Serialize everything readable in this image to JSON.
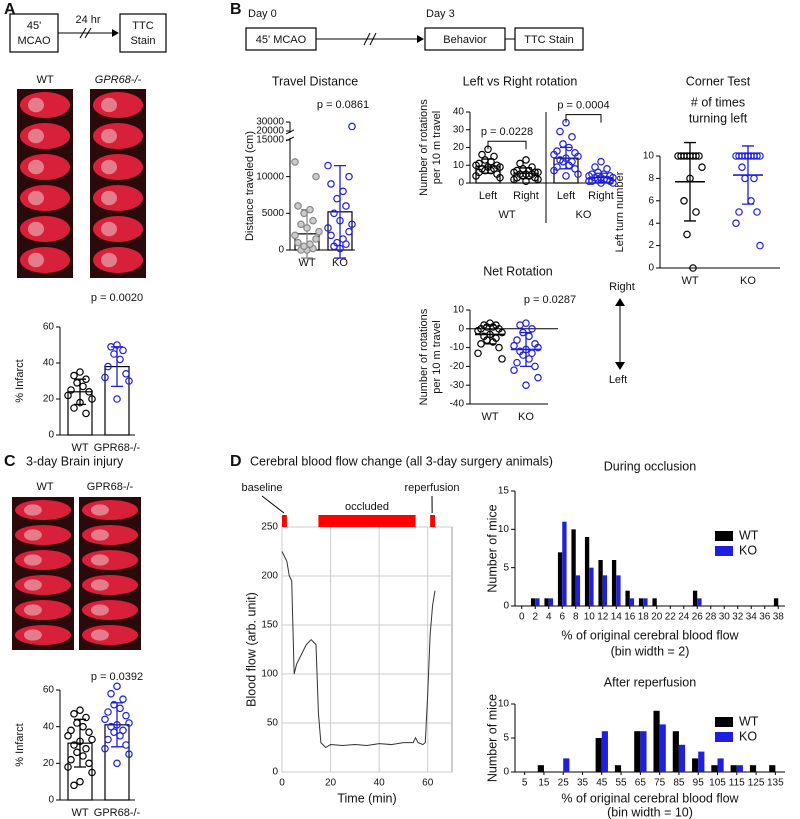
{
  "panels": {
    "A": {
      "label": "A",
      "steps": [
        [
          "45'",
          "MCAO"
        ],
        "24 hr",
        [
          "TTC",
          "Stain"
        ]
      ],
      "images": [
        "WT",
        "GPR68-/-"
      ]
    },
    "B": {
      "label": "B",
      "timeline": [
        "Day 0",
        "Day 3"
      ],
      "steps": [
        "45' MCAO",
        "Behavior",
        "TTC Stain"
      ]
    },
    "C": {
      "label": "C",
      "title": "3-day Brain injury",
      "images": [
        "WT",
        "GPR68-/-"
      ]
    },
    "D": {
      "label": "D",
      "title": "Cerebral blood flow change (all 3-day surgery animals)"
    }
  },
  "chart_data": [
    {
      "type": "dotplot",
      "ylabel": [
        "% Infarct"
      ],
      "pvalues": [
        "p = 0.0020"
      ],
      "bars": true,
      "categories": [
        "WT",
        "GPR68-/-"
      ],
      "values": [
        24,
        38
      ],
      "errors": [
        7,
        11
      ],
      "colors": [
        "#000000",
        "#1f1fe0"
      ],
      "points": [
        [
          35,
          33,
          31,
          29,
          27,
          25,
          24,
          22,
          20,
          18,
          15,
          12
        ],
        [
          50,
          49,
          47,
          45,
          42,
          38,
          34,
          32,
          30,
          20
        ]
      ],
      "ylim": [
        0,
        60
      ],
      "yticks": [
        0,
        20,
        40,
        60
      ]
    },
    {
      "type": "dotplot",
      "title": "Travel Distance",
      "ylabel": [
        "Distance traveled (cm)"
      ],
      "pvalues": [
        "p = 0.0861"
      ],
      "bars": true,
      "categories": [
        "WT",
        "KO"
      ],
      "values": [
        2200,
        5200
      ],
      "errors": [
        3300,
        6300
      ],
      "colors": [
        "#888888",
        "#1f1fe0"
      ],
      "points": [
        [
          0,
          0,
          200,
          500,
          800,
          1000,
          1500,
          2000,
          2500,
          3000,
          3500,
          4000,
          5000,
          5500,
          6000,
          10000,
          12000
        ],
        [
          200,
          500,
          800,
          1000,
          1500,
          2000,
          2500,
          3000,
          3500,
          4000,
          5000,
          6000,
          7000,
          8000,
          9000,
          10000,
          11500,
          25000
        ]
      ],
      "ylim": [
        0,
        30000
      ],
      "yticks": [
        0,
        5000,
        10000,
        15000,
        20000,
        30000
      ]
    },
    {
      "type": "dotplot",
      "title": "Left vs Right rotation",
      "ylabel": [
        "Number of rotations",
        "per 10 m travel"
      ],
      "pvalues": [
        "p = 0.0228",
        "p = 0.0004"
      ],
      "bars": true,
      "categories": [
        "Left",
        "Right",
        "Left",
        "Right"
      ],
      "groups": [
        "WT",
        "KO"
      ],
      "values": [
        9.5,
        5.5,
        14,
        3
      ],
      "errors": [
        4,
        3,
        6,
        2.5
      ],
      "colors": [
        "#000000",
        "#000000",
        "#1f1fe0",
        "#1f1fe0"
      ],
      "points": [
        [
          19,
          16,
          15,
          13,
          12,
          11,
          10,
          10,
          9,
          9,
          8,
          8,
          7,
          7,
          6,
          5,
          4,
          3
        ],
        [
          13,
          11,
          9,
          8,
          7,
          7,
          6,
          6,
          6,
          5,
          5,
          5,
          4,
          4,
          3,
          3,
          2,
          2,
          1
        ],
        [
          34,
          29,
          26,
          22,
          20,
          18,
          17,
          16,
          15,
          14,
          13,
          12,
          12,
          10,
          9,
          8,
          7,
          5,
          4
        ],
        [
          12,
          9,
          8,
          6,
          5,
          5,
          4,
          4,
          3,
          3,
          3,
          2,
          2,
          2,
          1,
          1,
          1,
          0,
          0
        ]
      ],
      "ylim": [
        0,
        40
      ],
      "yticks": [
        0,
        10,
        20,
        30,
        40
      ]
    },
    {
      "type": "dotplot",
      "title": "Net Rotation",
      "ylabel": [
        "Number of rotations",
        "per 10 m travel"
      ],
      "pvalues": [
        "p = 0.0287"
      ],
      "bars": false,
      "direction_labels": [
        "Right",
        "Left"
      ],
      "categories": [
        "WT",
        "KO"
      ],
      "values": [
        -3,
        -11
      ],
      "errors": [
        5,
        9
      ],
      "colors": [
        "#000000",
        "#1f1fe0"
      ],
      "points": [
        [
          3,
          2,
          2,
          1,
          1,
          0,
          0,
          -1,
          -2,
          -3,
          -4,
          -5,
          -6,
          -7,
          -8,
          -10,
          -13,
          -16
        ],
        [
          3,
          2,
          0,
          -2,
          -4,
          -6,
          -8,
          -9,
          -10,
          -11,
          -12,
          -13,
          -14,
          -16,
          -18,
          -20,
          -22,
          -26,
          -30
        ]
      ],
      "ylim": [
        -40,
        10
      ],
      "yticks": [
        -40,
        -30,
        -20,
        -10,
        0,
        10
      ]
    },
    {
      "type": "dotplot",
      "title": "Corner Test",
      "subtitle": [
        "# of times",
        "turning left"
      ],
      "ylabel": [
        "Left turn number"
      ],
      "bars": false,
      "categories": [
        "WT",
        "KO"
      ],
      "values": [
        7.7,
        8.3
      ],
      "errors": [
        3.5,
        2.6
      ],
      "colors": [
        "#000000",
        "#1f1fe0"
      ],
      "points": [
        [
          10,
          10,
          10,
          10,
          10,
          10,
          10,
          10,
          9,
          8,
          6,
          5,
          3,
          0
        ],
        [
          10,
          10,
          10,
          10,
          10,
          10,
          10,
          10,
          10,
          10,
          9,
          8,
          8,
          6,
          5,
          5,
          4,
          2
        ]
      ],
      "ylim": [
        0,
        10
      ],
      "yticks": [
        0,
        2,
        4,
        6,
        8,
        10
      ]
    },
    {
      "type": "dotplot",
      "ylabel": [
        "% Infarct"
      ],
      "pvalues": [
        "p = 0.0392"
      ],
      "bars": true,
      "categories": [
        "WT",
        "GPR68-/-"
      ],
      "values": [
        31,
        41
      ],
      "errors": [
        13,
        12
      ],
      "colors": [
        "#000000",
        "#1f1fe0"
      ],
      "points": [
        [
          49,
          47,
          45,
          42,
          40,
          38,
          37,
          35,
          33,
          32,
          30,
          28,
          26,
          24,
          22,
          20,
          18,
          15,
          10,
          8
        ],
        [
          62,
          58,
          55,
          52,
          50,
          48,
          46,
          44,
          42,
          41,
          40,
          38,
          37,
          35,
          33,
          30,
          28,
          25,
          20
        ]
      ],
      "ylim": [
        0,
        60
      ],
      "yticks": [
        0,
        20,
        40,
        60
      ]
    },
    {
      "type": "line",
      "xlabel": "Time (min)",
      "ylabel": "Blood flow (arb. unit)",
      "grid": true,
      "color": "#333333",
      "period_labels": [
        "baseline",
        "occluded",
        "reperfusion"
      ],
      "periods": [
        [
          0,
          2
        ],
        [
          15,
          55
        ],
        [
          61,
          63
        ]
      ],
      "period_color": "#ff0000",
      "x": [
        0,
        1,
        2,
        3,
        4,
        5,
        6,
        8,
        10,
        12,
        14,
        15,
        16,
        18,
        20,
        25,
        30,
        35,
        40,
        45,
        50,
        54,
        55,
        56,
        58,
        59,
        60,
        61,
        62,
        63
      ],
      "y": [
        225,
        220,
        215,
        200,
        195,
        100,
        110,
        120,
        130,
        135,
        130,
        60,
        30,
        25,
        28,
        27,
        28,
        27,
        29,
        28,
        30,
        30,
        35,
        30,
        28,
        30,
        80,
        140,
        170,
        185
      ],
      "xlim": [
        0,
        70
      ],
      "xticks": [
        0,
        20,
        40,
        60
      ],
      "ylim": [
        0,
        250
      ],
      "yticks": [
        0,
        50,
        100,
        150,
        200,
        250
      ]
    },
    {
      "type": "bar",
      "title": "During occlusion",
      "xlabel": "% of original cerebral blood flow",
      "xlabel2": "(bin width = 2)",
      "ylabel": "Number of mice",
      "legend": "upper right",
      "categories": [
        0,
        2,
        4,
        6,
        8,
        10,
        12,
        14,
        16,
        18,
        20,
        22,
        24,
        26,
        28,
        30,
        32,
        34,
        36,
        38
      ],
      "series": [
        {
          "name": "WT",
          "color": "#000000",
          "values": [
            0,
            1,
            1,
            7,
            10,
            9,
            6,
            6,
            2,
            1,
            1,
            0,
            0,
            2,
            0,
            0,
            0,
            0,
            0,
            1
          ]
        },
        {
          "name": "KO",
          "color": "#1f1fe0",
          "values": [
            0,
            1,
            1,
            11,
            4,
            5,
            4,
            4,
            1,
            1,
            0,
            0,
            0,
            1,
            0,
            0,
            0,
            0,
            0,
            0
          ]
        }
      ],
      "ylim": [
        0,
        15
      ],
      "yticks": [
        0,
        5,
        10,
        15
      ]
    },
    {
      "type": "bar",
      "title": "After reperfusion",
      "xlabel": "% of original cerebral blood flow",
      "xlabel2": "(bin width = 10)",
      "ylabel": "Number of mice",
      "legend": "upper right",
      "categories": [
        5,
        15,
        25,
        35,
        45,
        55,
        65,
        75,
        85,
        95,
        105,
        115,
        125,
        135
      ],
      "series": [
        {
          "name": "WT",
          "color": "#000000",
          "values": [
            0,
            1,
            0,
            0,
            5,
            1,
            6,
            9,
            6,
            2,
            1,
            1,
            1,
            1
          ]
        },
        {
          "name": "KO",
          "color": "#1f1fe0",
          "values": [
            0,
            0,
            2,
            0,
            6,
            0,
            6,
            7,
            4,
            3,
            2,
            1,
            0,
            0
          ]
        }
      ],
      "ylim": [
        0,
        10
      ],
      "yticks": [
        0,
        5,
        10
      ]
    }
  ]
}
